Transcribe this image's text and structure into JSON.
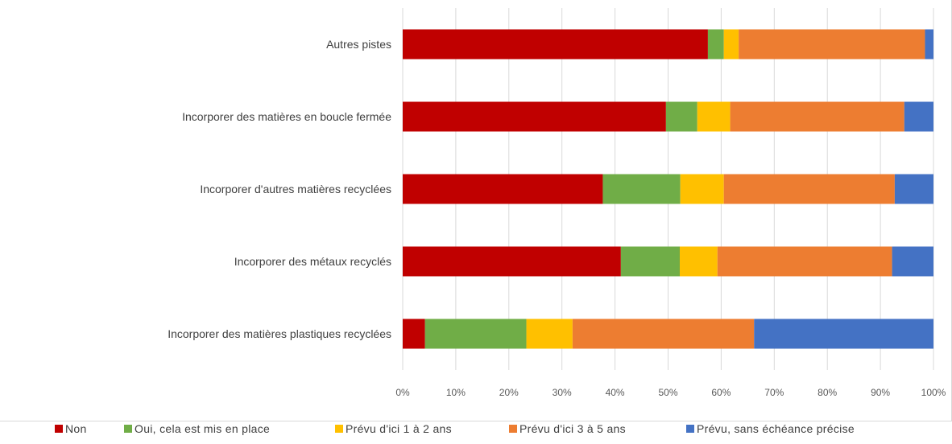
{
  "chart_data": {
    "type": "bar",
    "orientation": "horizontal",
    "stacked": "percent",
    "categories": [
      "Autres pistes",
      "Incorporer des matières en boucle fermée",
      "Incorporer d'autres matières recyclées",
      "Incorporer des métaux recyclés",
      "Incorporer des matières plastiques recyclées"
    ],
    "series": [
      {
        "name": "Non",
        "color": "#c00000",
        "values": [
          57.5,
          49.6,
          37.7,
          41.1,
          4.2
        ]
      },
      {
        "name": "Oui, cela est mis en place",
        "color": "#70ad47",
        "values": [
          3.0,
          5.9,
          14.6,
          11.1,
          19.1
        ]
      },
      {
        "name": "Prévu d'ici 1 à 2 ans",
        "color": "#ffc000",
        "values": [
          2.8,
          6.2,
          8.2,
          7.1,
          8.7
        ]
      },
      {
        "name": "Prévu d'ici 3 à 5 ans",
        "color": "#ed7d31",
        "values": [
          35.1,
          32.8,
          32.2,
          32.9,
          34.2
        ]
      },
      {
        "name": "Prévu, sans échéance précise",
        "color": "#4472c4",
        "values": [
          1.6,
          5.5,
          7.3,
          7.8,
          33.8
        ]
      }
    ],
    "xlim": [
      0,
      100
    ],
    "xticks": [
      "0%",
      "10%",
      "20%",
      "30%",
      "40%",
      "50%",
      "60%",
      "70%",
      "80%",
      "90%",
      "100%"
    ],
    "grid": true,
    "legend_position": "bottom"
  }
}
